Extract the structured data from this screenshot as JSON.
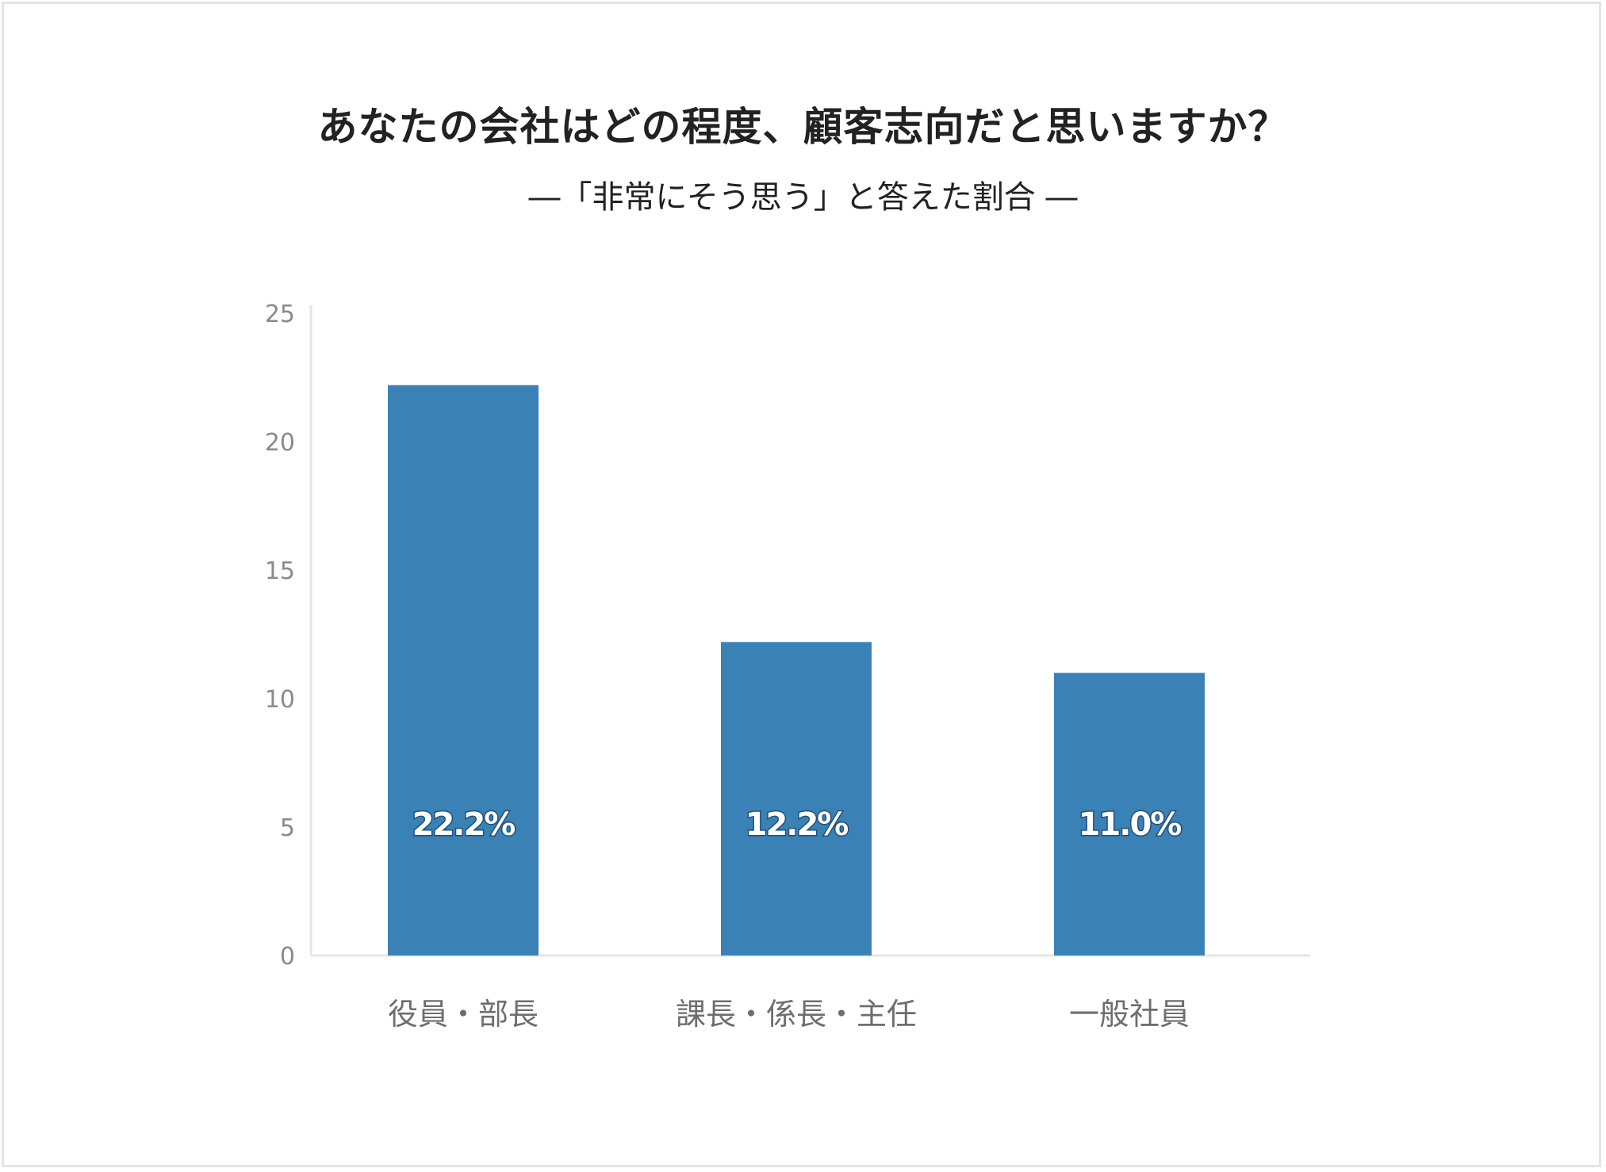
{
  "chart_data": {
    "type": "bar",
    "title": "あなたの会社はどの程度、顧客志向だと思いますか？",
    "subtitle": "―「非常にそう思う」と答えた割合 ―",
    "categories": [
      "役員・部長",
      "課長・係長・主任",
      "一般社員"
    ],
    "values": [
      22.2,
      12.2,
      11.0
    ],
    "data_labels": [
      "22.2%",
      "12.2%",
      "11.0%"
    ],
    "yticks": [
      "0",
      "5",
      "10",
      "15",
      "20",
      "25"
    ],
    "ylim": [
      0,
      25
    ],
    "xlabel": "",
    "ylabel": "",
    "grid": false,
    "legend": "none",
    "bar_color": "#3a82b5",
    "axis_color": "#e6e6e6"
  }
}
